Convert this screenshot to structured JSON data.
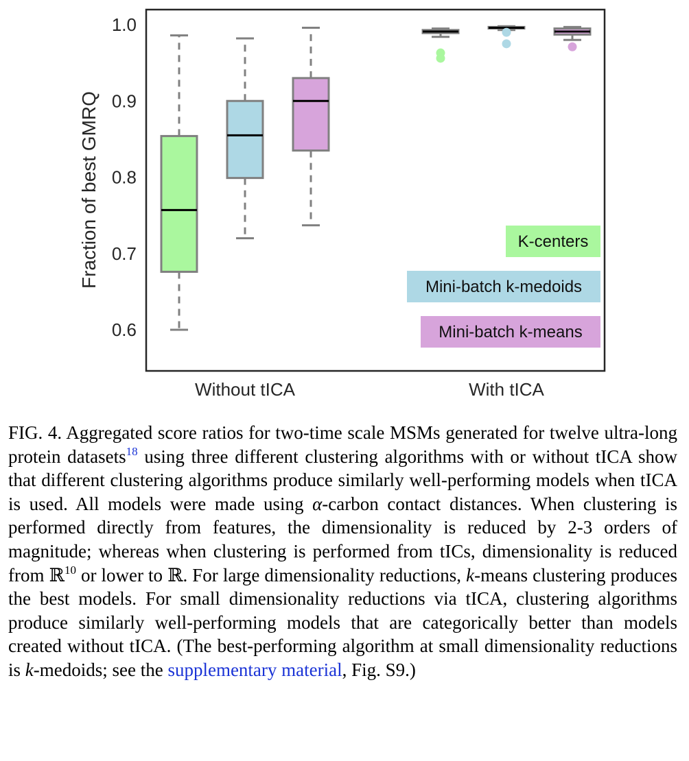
{
  "chart_data": {
    "type": "box",
    "ylabel": "Fraction of best GMRQ",
    "ylim": [
      0.55,
      1.02
    ],
    "yticks": [
      "0.6",
      "0.7",
      "0.8",
      "0.9",
      "1.0"
    ],
    "categories": [
      "Without tICA",
      "With tICA"
    ],
    "series": [
      {
        "name": "K-centers",
        "color": "#aaf79e",
        "boxes": [
          {
            "category": "Without tICA",
            "whisker_low": 0.6,
            "q1": 0.676,
            "median": 0.757,
            "q3": 0.854,
            "whisker_high": 0.986,
            "outliers": []
          },
          {
            "category": "With tICA",
            "whisker_low": 0.984,
            "q1": 0.989,
            "median": 0.991,
            "q3": 0.993,
            "whisker_high": 0.995,
            "outliers": [
              0.956,
              0.963
            ]
          }
        ]
      },
      {
        "name": "Mini-batch k-medoids",
        "color": "#aed8e5",
        "boxes": [
          {
            "category": "Without tICA",
            "whisker_low": 0.72,
            "q1": 0.799,
            "median": 0.855,
            "q3": 0.9,
            "whisker_high": 0.982,
            "outliers": []
          },
          {
            "category": "With tICA",
            "whisker_low": 0.993,
            "q1": 0.995,
            "median": 0.996,
            "q3": 0.997,
            "whisker_high": 0.998,
            "outliers": [
              0.975,
              0.99
            ]
          }
        ]
      },
      {
        "name": "Mini-batch k-means",
        "color": "#d7a4db",
        "boxes": [
          {
            "category": "Without tICA",
            "whisker_low": 0.737,
            "q1": 0.835,
            "median": 0.9,
            "q3": 0.93,
            "whisker_high": 0.996,
            "outliers": []
          },
          {
            "category": "With tICA",
            "whisker_low": 0.98,
            "q1": 0.987,
            "median": 0.991,
            "q3": 0.995,
            "whisker_high": 0.997,
            "outliers": [
              0.971
            ]
          }
        ]
      }
    ],
    "legend_placement": "lower-right",
    "grid": false,
    "box_edge_color": "#808080",
    "median_color": "#000000"
  },
  "caption": {
    "label": "FIG. 4.",
    "part1": "Aggregated score ratios for two-time scale MSMs generated for twelve ultra-long protein datasets",
    "ref": "18",
    "part2": "using three different clustering algorithms with or without tICA show that different clustering algorithms produce similarly well-performing models when tICA is used. All models were made using",
    "alpha": "α",
    "part3": "-carbon contact distances. When clustering is performed directly from features, the dimensionality is reduced by 2-3 orders of magnitude; whereas when clustering is performed from tICs, dimensionality is reduced from",
    "R1": "ℝ",
    "exp": "10",
    "part4": "or lower to",
    "R2": "ℝ",
    "part5": ". For large dimensionality reductions,",
    "k1": "k",
    "part6": "-means clustering produces the best models. For small dimensionality reductions via tICA, clustering algorithms produce similarly well-performing models that are categorically better than models created without tICA. (The best-performing algorithm at small dimensionality reductions is",
    "k2": "k",
    "part7": "-medoids; see the",
    "link": "supplementary material",
    "part8": ", Fig. S9.)"
  }
}
